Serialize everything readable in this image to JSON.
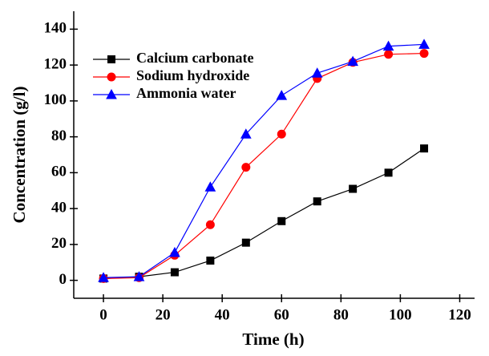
{
  "chart_data": {
    "type": "line",
    "x_label": "Time (h)",
    "y_label": "Concentration (g/l)",
    "x": [
      0,
      12,
      24,
      36,
      48,
      60,
      72,
      84,
      96,
      108
    ],
    "series": [
      {
        "name": "Calcium carbonate",
        "color": "#000000",
        "marker": "square",
        "values": [
          1,
          2,
          4.5,
          11,
          21,
          33,
          44,
          51,
          60,
          73.5
        ]
      },
      {
        "name": "Sodium hydroxide",
        "color": "#ff0000",
        "marker": "circle",
        "values": [
          1,
          1.5,
          14,
          31,
          63,
          81.5,
          112.5,
          121.5,
          126,
          126.5
        ]
      },
      {
        "name": "Ammonia water",
        "color": "#0000ff",
        "marker": "triangle",
        "values": [
          1.5,
          2,
          15.5,
          52,
          81.5,
          103,
          115.5,
          122,
          130.5,
          131.5
        ]
      }
    ],
    "xlim": [
      -10,
      125
    ],
    "ylim": [
      -10,
      150
    ],
    "xticks": [
      0,
      20,
      40,
      60,
      80,
      100,
      120
    ],
    "yticks": [
      0,
      20,
      40,
      60,
      80,
      100,
      120,
      140
    ],
    "legend": "upper-left",
    "grid": false
  }
}
